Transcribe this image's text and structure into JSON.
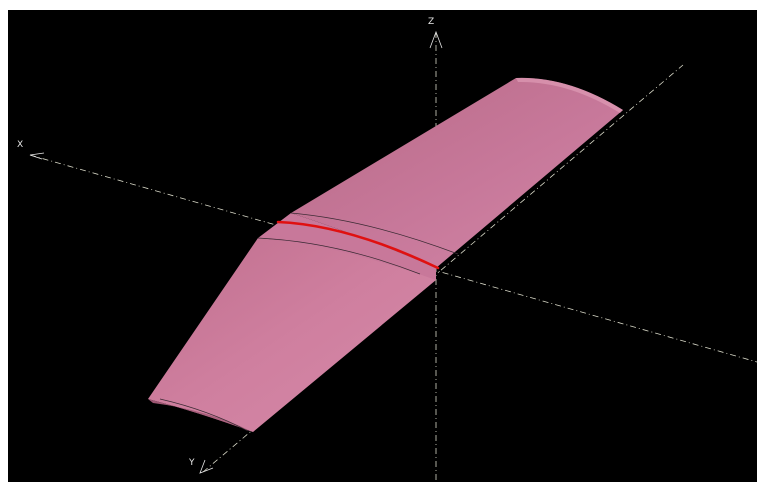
{
  "viewport": {
    "background_color": "#000000",
    "axes": {
      "z_label": "Z",
      "x_label": "X",
      "y_label": "Y",
      "line_color": "#d9d9c8"
    },
    "model": {
      "name": "wing",
      "surface_color": "#c9708f",
      "edge_color": "#3a2a33",
      "highlight_color": "#e01010"
    }
  }
}
